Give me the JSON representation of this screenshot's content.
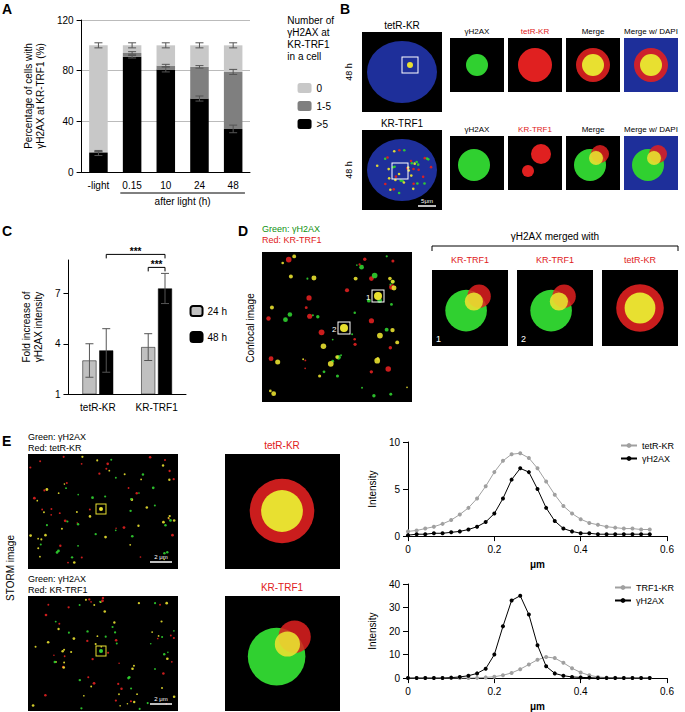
{
  "panel_labels": [
    "A",
    "B",
    "C",
    "D",
    "E"
  ],
  "chart_data": [
    {
      "type": "bar",
      "stacked": true,
      "categories": [
        "-light",
        "0.15",
        "10",
        "24",
        "48"
      ],
      "category_group": {
        "label": "after light (h)",
        "from": "0.15",
        "to": "48"
      },
      "y_label": [
        "Percentage of cells with",
        "γH2AX at KR-TRF1 (%)"
      ],
      "ylim": [
        0,
        120
      ],
      "yticks": [
        0,
        40,
        80,
        120
      ],
      "grid": true,
      "legend": "right",
      "legend_title": [
        "Number of",
        "γH2AX at",
        "KR-TRF1",
        "in a cell"
      ],
      "series": [
        {
          "name": ">5",
          "color": "#000000",
          "values": [
            15,
            91,
            81,
            58,
            34
          ],
          "errors": [
            2,
            1,
            2,
            2,
            3
          ]
        },
        {
          "name": "1-5",
          "color": "#7f7f7f",
          "values": [
            1,
            3,
            3,
            25,
            45
          ],
          "errors": [
            0,
            1,
            1,
            1,
            2
          ]
        },
        {
          "name": "0",
          "color": "#c8c8c8",
          "values": [
            84,
            6,
            16,
            17,
            21
          ],
          "errors": [
            2,
            2,
            2,
            2,
            2
          ]
        }
      ]
    },
    {
      "type": "bar",
      "categories": [
        "tetR-KR",
        "KR-TRF1"
      ],
      "y_label": [
        "Fold increase of",
        "γH2AX intensity"
      ],
      "ylim": [
        1,
        9
      ],
      "yticks": [
        1,
        4,
        7
      ],
      "grid": false,
      "legend": "right",
      "series": [
        {
          "name": "24 h",
          "color": "#c0c0c0",
          "values": [
            3.0,
            3.8
          ],
          "errors": [
            1.0,
            0.8
          ]
        },
        {
          "name": "48 h",
          "color": "#000000",
          "values": [
            3.6,
            7.3
          ],
          "errors": [
            1.3,
            0.9
          ]
        }
      ],
      "significance": [
        {
          "between": [
            [
              "KR-TRF1",
              "24 h"
            ],
            [
              "KR-TRF1",
              "48 h"
            ]
          ],
          "label": "***"
        },
        {
          "between": [
            [
              "tetR-KR",
              "48 h"
            ],
            [
              "KR-TRF1",
              "48 h"
            ]
          ],
          "label": "***"
        }
      ]
    },
    {
      "type": "line",
      "marker": "circle",
      "x": [
        0,
        0.02,
        0.04,
        0.06,
        0.08,
        0.1,
        0.12,
        0.14,
        0.16,
        0.18,
        0.2,
        0.22,
        0.24,
        0.26,
        0.28,
        0.3,
        0.32,
        0.34,
        0.36,
        0.38,
        0.4,
        0.42,
        0.44,
        0.46,
        0.48,
        0.5,
        0.52,
        0.54,
        0.56
      ],
      "xlim": [
        0,
        0.6
      ],
      "xticks": [
        0,
        0.2,
        0.4,
        0.6
      ],
      "ylim": [
        0,
        10
      ],
      "yticks": [
        0,
        5,
        10
      ],
      "x_label": "μm",
      "y_label": "Intensity",
      "grid": false,
      "legend": "upper right",
      "series": [
        {
          "name": "tetR-KR",
          "color": "#a0a0a0",
          "values": [
            0.5,
            0.6,
            0.8,
            1.0,
            1.3,
            1.7,
            2.3,
            3.0,
            4.0,
            5.3,
            6.8,
            8.0,
            8.7,
            8.8,
            8.3,
            7.2,
            5.8,
            4.4,
            3.2,
            2.4,
            1.8,
            1.4,
            1.2,
            1.0,
            0.9,
            0.8,
            0.8,
            0.7,
            0.7
          ]
        },
        {
          "name": "γH2AX",
          "color": "#000000",
          "values": [
            0.1,
            0.2,
            0.2,
            0.3,
            0.3,
            0.4,
            0.5,
            0.7,
            1.0,
            1.5,
            2.4,
            4.0,
            6.0,
            7.2,
            6.8,
            5.0,
            3.0,
            1.6,
            0.8,
            0.5,
            0.3,
            0.3,
            0.2,
            0.2,
            0.2,
            0.2,
            0.2,
            0.2,
            0.2
          ]
        }
      ]
    },
    {
      "type": "line",
      "marker": "circle",
      "x": [
        0,
        0.02,
        0.04,
        0.06,
        0.08,
        0.1,
        0.12,
        0.14,
        0.16,
        0.18,
        0.2,
        0.22,
        0.24,
        0.26,
        0.28,
        0.3,
        0.32,
        0.34,
        0.36,
        0.38,
        0.4,
        0.42,
        0.44,
        0.46,
        0.48,
        0.5,
        0.52,
        0.54,
        0.56
      ],
      "xlim": [
        0,
        0.6
      ],
      "xticks": [
        0,
        0.2,
        0.4,
        0.6
      ],
      "ylim": [
        0,
        40
      ],
      "yticks": [
        0,
        10,
        20,
        30,
        40
      ],
      "x_label": "μm",
      "y_label": "Intensity",
      "grid": false,
      "legend": "upper right",
      "series": [
        {
          "name": "TRF1-KR",
          "color": "#a0a0a0",
          "values": [
            0,
            0,
            0,
            0,
            0,
            0,
            0,
            0,
            0.1,
            0.3,
            0.6,
            1.2,
            2.2,
            3.8,
            5.8,
            7.8,
            9.0,
            8.5,
            6.5,
            4.2,
            2.4,
            1.2,
            0.5,
            0.2,
            0.1,
            0,
            0,
            0,
            0
          ]
        },
        {
          "name": "γH2AX",
          "color": "#000000",
          "values": [
            0,
            0,
            0,
            0,
            0,
            0.2,
            0.5,
            1,
            2,
            4,
            10,
            22,
            33,
            35,
            27,
            14,
            5,
            2,
            1,
            0.5,
            0.3,
            0.2,
            0,
            0,
            0,
            0,
            0,
            0,
            0
          ]
        }
      ]
    }
  ],
  "images": {
    "B": {
      "rows": [
        {
          "side_label": "48 h",
          "title": "tetR-KR",
          "columns": [
            {
              "text": "γH2AX",
              "color": "#000000"
            },
            {
              "text": "tetR-KR",
              "color": "#e02020"
            },
            {
              "text": "Merge",
              "color": "#000000"
            },
            {
              "text": "Merge w/ DAPI",
              "color": "#000000"
            }
          ]
        },
        {
          "side_label": "48 h",
          "title": "KR-TRF1",
          "scale_bar": "5μm",
          "columns": [
            {
              "text": "γH2AX",
              "color": "#000000"
            },
            {
              "text": "KR-TRF1",
              "color": "#e02020"
            },
            {
              "text": "Merge",
              "color": "#000000"
            },
            {
              "text": "Merge w/ DAPI",
              "color": "#000000"
            }
          ]
        }
      ]
    },
    "D": {
      "legend": [
        {
          "text": "Green: γH2AX",
          "color": "#109010"
        },
        {
          "text": "Red: KR-TRF1",
          "color": "#e02020"
        }
      ],
      "side_label": "Confocal image",
      "marks": [
        "1",
        "2"
      ],
      "zoom_title": "γH2AX merged with",
      "zooms": [
        {
          "text": "KR-TRF1",
          "color": "#e02020",
          "mark": "1"
        },
        {
          "text": "KR-TRF1",
          "color": "#e02020",
          "mark": "2"
        },
        {
          "text": "tetR-KR",
          "color": "#e02020"
        }
      ]
    },
    "E": {
      "side_label": "STORM image",
      "rows": [
        {
          "legend": [
            {
              "text": "Green: γH2AX",
              "color": "#000000"
            },
            {
              "text": "Red: tetR-KR",
              "color": "#000000"
            }
          ],
          "zoom_title": {
            "text": "tetR-KR",
            "color": "#e02020"
          },
          "scale_bar": "2 μm"
        },
        {
          "legend": [
            {
              "text": "Green: γH2AX",
              "color": "#000000"
            },
            {
              "text": "Red: KR-TRF1",
              "color": "#000000"
            }
          ],
          "zoom_title": {
            "text": "KR-TRF1",
            "color": "#e02020"
          },
          "scale_bar": "2 μm"
        }
      ]
    }
  }
}
